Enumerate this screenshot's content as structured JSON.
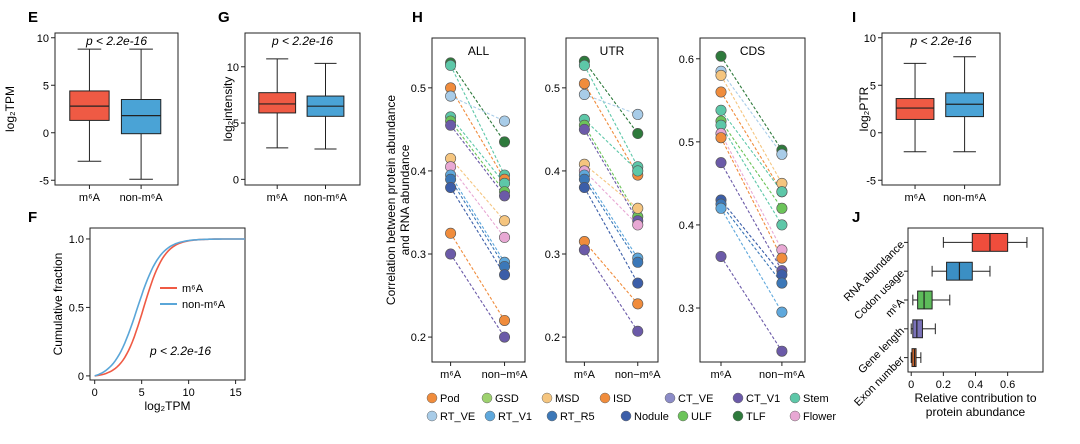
{
  "colors": {
    "m6a": "#ef5a44",
    "non_m6a": "#4aa3d6",
    "line_red": "#ef5a44",
    "line_blue": "#5aa6d8"
  },
  "panels": {
    "E": "E",
    "F": "F",
    "G": "G",
    "H": "H",
    "I": "I",
    "J": "J"
  },
  "chart_data": [
    {
      "id": "E",
      "type": "box",
      "ylabel": "log₂TPM",
      "annotation": "p < 2.2e-16",
      "categories": [
        "m⁶A",
        "non-m⁶A"
      ],
      "yticks": [
        -5,
        0,
        5,
        10
      ],
      "ylim": [
        -5.5,
        10.5
      ],
      "boxes": [
        {
          "min": -3,
          "q1": 1.3,
          "median": 2.8,
          "q3": 4.4,
          "max": 8.8
        },
        {
          "min": -4.9,
          "q1": -0.1,
          "median": 1.8,
          "q3": 3.5,
          "max": 8.8
        }
      ]
    },
    {
      "id": "F",
      "type": "line",
      "ylabel": "Cumulative fraction",
      "xlabel": "log₂TPM",
      "annotation": "p < 2.2e-16",
      "xticks": [
        0,
        5,
        10,
        15
      ],
      "yticks": [
        0,
        0.5,
        1.0
      ],
      "ytick_labels": [
        "0",
        "0.5",
        "1.0"
      ],
      "xlim": [
        -0.5,
        16
      ],
      "ylim": [
        -0.03,
        1.08
      ],
      "series": [
        {
          "name": "m⁶A",
          "mean": 5.2,
          "sd": 1.9
        },
        {
          "name": "non-m⁶A",
          "mean": 4.5,
          "sd": 2.1
        }
      ]
    },
    {
      "id": "G",
      "type": "box",
      "ylabel": "log₂intensity",
      "annotation": "p < 2.2e-16",
      "categories": [
        "m⁶A",
        "non-m⁶A"
      ],
      "yticks": [
        0,
        5,
        10
      ],
      "ylim": [
        -0.5,
        13
      ],
      "boxes": [
        {
          "min": 2.8,
          "q1": 5.9,
          "median": 6.7,
          "q3": 7.7,
          "max": 10.7
        },
        {
          "min": 2.7,
          "q1": 5.6,
          "median": 6.5,
          "q3": 7.4,
          "max": 10.3
        }
      ]
    },
    {
      "id": "H",
      "type": "paired-dots",
      "ylabel": "Correlation between protein abundance and RNA abundance",
      "categories": [
        "m⁶A",
        "non−m⁶A"
      ],
      "legend": [
        {
          "name": "Pod",
          "color": "#f08c3c"
        },
        {
          "name": "GSD",
          "color": "#9dd16e"
        },
        {
          "name": "MSD",
          "color": "#f5c57f"
        },
        {
          "name": "ISD",
          "color": "#f08c3c"
        },
        {
          "name": "CT_VE",
          "color": "#8c8cc8"
        },
        {
          "name": "CT_V1",
          "color": "#6b5aa8"
        },
        {
          "name": "Stem",
          "color": "#5dc7a8"
        },
        {
          "name": "RT_VE",
          "color": "#a8cce8"
        },
        {
          "name": "RT_V1",
          "color": "#5fa8dc"
        },
        {
          "name": "RT_R5",
          "color": "#3c78b8"
        },
        {
          "name": "Nodule",
          "color": "#3c5ea8"
        },
        {
          "name": "ULF",
          "color": "#6cc45a"
        },
        {
          "name": "TLF",
          "color": "#2e7a3c"
        },
        {
          "name": "Flower",
          "color": "#e8a8d4"
        }
      ],
      "facets": [
        {
          "title": "ALL",
          "yticks": [
            0.2,
            0.3,
            0.4,
            0.5
          ],
          "ylim": [
            0.17,
            0.56
          ],
          "pairs": [
            [
              0.53,
              0.435,
              "#2e7a3c"
            ],
            [
              0.527,
              0.395,
              "#5dc7a8"
            ],
            [
              0.5,
              0.39,
              "#f08c3c"
            ],
            [
              0.49,
              0.46,
              "#a8cce8"
            ],
            [
              0.465,
              0.385,
              "#5dc7a8"
            ],
            [
              0.46,
              0.375,
              "#6cc45a"
            ],
            [
              0.455,
              0.37,
              "#6b5aa8"
            ],
            [
              0.415,
              0.34,
              "#f5c57f"
            ],
            [
              0.405,
              0.32,
              "#e8a8d4"
            ],
            [
              0.395,
              0.29,
              "#5fa8dc"
            ],
            [
              0.39,
              0.285,
              "#3c78b8"
            ],
            [
              0.38,
              0.275,
              "#3c5ea8"
            ],
            [
              0.325,
              0.22,
              "#f08c3c"
            ],
            [
              0.3,
              0.2,
              "#6b5aa8"
            ]
          ]
        },
        {
          "title": "UTR",
          "yticks": [
            0.2,
            0.3,
            0.4,
            0.5
          ],
          "ylim": [
            0.17,
            0.56
          ],
          "pairs": [
            [
              0.532,
              0.445,
              "#2e7a3c"
            ],
            [
              0.527,
              0.405,
              "#5dc7a8"
            ],
            [
              0.505,
              0.395,
              "#f08c3c"
            ],
            [
              0.492,
              0.468,
              "#a8cce8"
            ],
            [
              0.462,
              0.4,
              "#5dc7a8"
            ],
            [
              0.455,
              0.345,
              "#6cc45a"
            ],
            [
              0.45,
              0.34,
              "#6b5aa8"
            ],
            [
              0.408,
              0.355,
              "#f5c57f"
            ],
            [
              0.4,
              0.335,
              "#e8a8d4"
            ],
            [
              0.395,
              0.295,
              "#5fa8dc"
            ],
            [
              0.39,
              0.29,
              "#3c78b8"
            ],
            [
              0.38,
              0.265,
              "#3c5ea8"
            ],
            [
              0.315,
              0.24,
              "#f08c3c"
            ],
            [
              0.305,
              0.207,
              "#6b5aa8"
            ]
          ]
        },
        {
          "title": "CDS",
          "yticks": [
            0.3,
            0.4,
            0.5,
            0.6
          ],
          "ylim": [
            0.235,
            0.625
          ],
          "pairs": [
            [
              0.603,
              0.49,
              "#2e7a3c"
            ],
            [
              0.585,
              0.485,
              "#a8cce8"
            ],
            [
              0.58,
              0.45,
              "#f5c57f"
            ],
            [
              0.56,
              0.44,
              "#f08c3c"
            ],
            [
              0.538,
              0.44,
              "#5dc7a8"
            ],
            [
              0.525,
              0.42,
              "#6cc45a"
            ],
            [
              0.52,
              0.4,
              "#5dc7a8"
            ],
            [
              0.51,
              0.37,
              "#e8a8d4"
            ],
            [
              0.505,
              0.36,
              "#f08c3c"
            ],
            [
              0.475,
              0.345,
              "#6b5aa8"
            ],
            [
              0.43,
              0.34,
              "#3c5ea8"
            ],
            [
              0.425,
              0.33,
              "#3c78b8"
            ],
            [
              0.42,
              0.295,
              "#5fa8dc"
            ],
            [
              0.362,
              0.248,
              "#6b5aa8"
            ]
          ]
        }
      ]
    },
    {
      "id": "I",
      "type": "box",
      "ylabel": "log₂PTR",
      "annotation": "p < 2.2e-16",
      "categories": [
        "m⁶A",
        "non-m⁶A"
      ],
      "yticks": [
        -5,
        0,
        5,
        10
      ],
      "ylim": [
        -5.5,
        10.5
      ],
      "boxes": [
        {
          "min": -2,
          "q1": 1.4,
          "median": 2.6,
          "q3": 3.6,
          "max": 7.3
        },
        {
          "min": -2,
          "q1": 1.7,
          "median": 3.0,
          "q3": 4.2,
          "max": 8.0
        }
      ]
    },
    {
      "id": "J",
      "type": "horizontal-box",
      "xlabel": "Relative contribution to protein abundance",
      "categories": [
        "RNA abundance",
        "Codon usage",
        "m⁶A",
        "Gene length",
        "Exon number"
      ],
      "xticks": [
        0,
        0.2,
        0.4,
        0.6
      ],
      "xtick_labels": [
        "0",
        "0.2",
        "0.4",
        "0.6"
      ],
      "xlim": [
        -0.02,
        0.82
      ],
      "boxes": [
        {
          "min": 0.2,
          "q1": 0.38,
          "median": 0.49,
          "q3": 0.6,
          "max": 0.72,
          "color": "#ef4d3c"
        },
        {
          "min": 0.13,
          "q1": 0.22,
          "median": 0.3,
          "q3": 0.38,
          "max": 0.49,
          "color": "#3b8fc4"
        },
        {
          "min": 0.01,
          "q1": 0.04,
          "median": 0.08,
          "q3": 0.13,
          "max": 0.24,
          "color": "#5dbb5a"
        },
        {
          "min": 0.0,
          "q1": 0.01,
          "median": 0.035,
          "q3": 0.07,
          "max": 0.15,
          "color": "#7a72b8"
        },
        {
          "min": 0.0,
          "q1": 0.005,
          "median": 0.02,
          "q3": 0.03,
          "max": 0.06,
          "color": "#e8702f"
        }
      ]
    }
  ]
}
